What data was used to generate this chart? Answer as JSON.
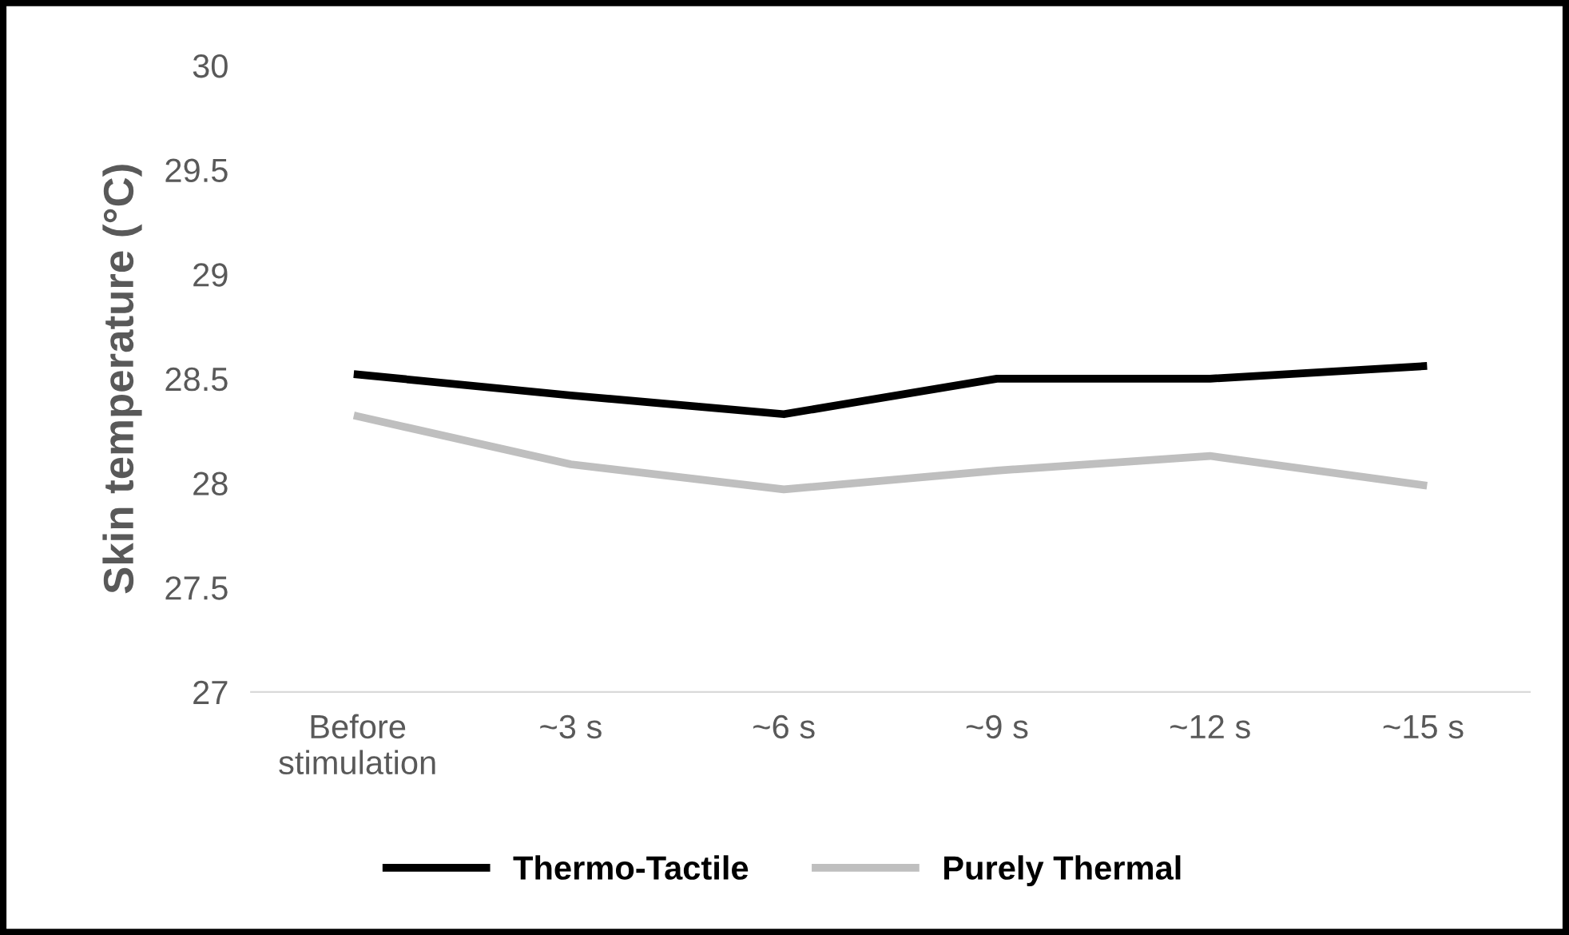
{
  "chart_data": {
    "type": "line",
    "ylabel": "Skin temperature (°C)",
    "categories": [
      "Before\nstimulation",
      "~3 s",
      "~6 s",
      "~9 s",
      "~12 s",
      "~15 s"
    ],
    "series": [
      {
        "name": "Thermo-Tactile",
        "color": "#000000",
        "values": [
          28.52,
          28.42,
          28.33,
          28.5,
          28.5,
          28.56
        ]
      },
      {
        "name": "Purely Thermal",
        "color": "#bfbfbf",
        "values": [
          28.32,
          28.09,
          27.97,
          28.06,
          28.13,
          27.99
        ]
      }
    ],
    "ylim": [
      27,
      30
    ],
    "yticks": [
      27,
      27.5,
      28,
      28.5,
      29,
      29.5,
      30
    ],
    "grid": false,
    "legend": "bottom",
    "marker": "none",
    "line_style": "solid"
  }
}
